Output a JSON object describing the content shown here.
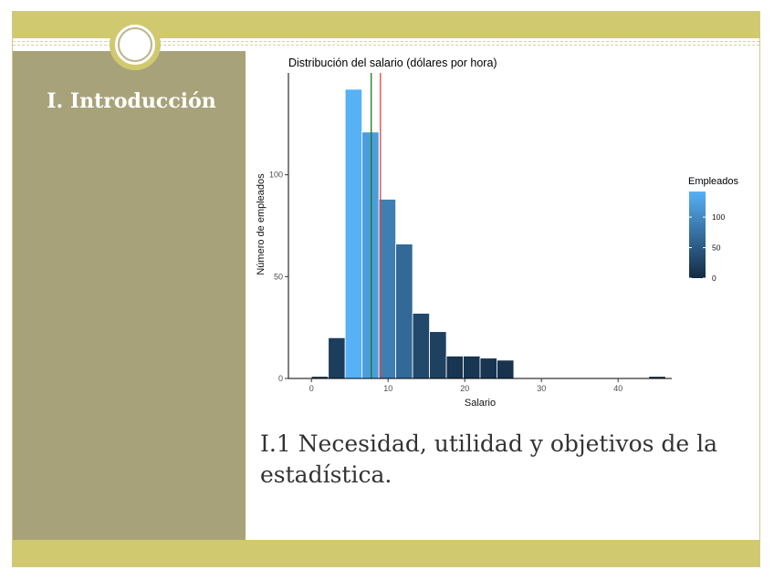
{
  "slide": {
    "section_title": "I. Introducción",
    "subtitle": "I.1 Necesidad, utilidad y objetivos de la estadística.",
    "colors": {
      "band": "#d0c96f",
      "sidebar": "#a8a27a",
      "mean_line": "#e0473f",
      "median_line": "#1a7a1a"
    }
  },
  "chart_data": {
    "type": "bar",
    "title": "Distribución del salario (dólares por hora)",
    "xlabel": "Salario",
    "ylabel": "Número de empleados",
    "xlim": [
      -3,
      47
    ],
    "ylim": [
      0,
      150
    ],
    "xticks": [
      0,
      10,
      20,
      30,
      40
    ],
    "yticks": [
      0,
      50,
      100
    ],
    "bin_width": 2.2,
    "bins": [
      {
        "x": 0,
        "count": 1
      },
      {
        "x": 2.2,
        "count": 20
      },
      {
        "x": 4.4,
        "count": 142
      },
      {
        "x": 6.6,
        "count": 121
      },
      {
        "x": 8.8,
        "count": 88
      },
      {
        "x": 11,
        "count": 66
      },
      {
        "x": 13.2,
        "count": 32
      },
      {
        "x": 15.4,
        "count": 23
      },
      {
        "x": 17.6,
        "count": 11
      },
      {
        "x": 19.8,
        "count": 11
      },
      {
        "x": 22,
        "count": 10
      },
      {
        "x": 24.2,
        "count": 9
      },
      {
        "x": 44,
        "count": 1
      }
    ],
    "vlines": [
      {
        "x": 7.8,
        "color": "#1a7a1a"
      },
      {
        "x": 9.0,
        "color": "#e0473f"
      }
    ],
    "legend": {
      "title": "Empleados",
      "ticks": [
        0,
        50,
        100
      ],
      "range": [
        0,
        142
      ],
      "low_color": "#132b43",
      "high_color": "#56b1f7",
      "position": "right"
    },
    "grid": false
  }
}
